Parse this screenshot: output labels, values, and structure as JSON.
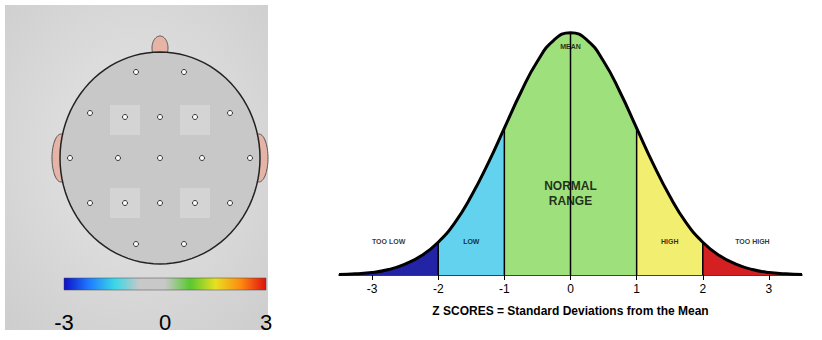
{
  "head_map": {
    "value": 0,
    "colorbar": {
      "range": [
        -3,
        3
      ],
      "ticks": [
        -3,
        0,
        3
      ],
      "colors": [
        "#1010c8",
        "#1e7cff",
        "#38d8e8",
        "#c8c8c8",
        "#c8c8c8",
        "#58c830",
        "#e8e020",
        "#ff8a10",
        "#e01010"
      ]
    }
  },
  "chart_data": {
    "type": "area",
    "x": [
      -3.5,
      -3.25,
      -3,
      -2.75,
      -2.5,
      -2.25,
      -2,
      -1.75,
      -1.5,
      -1.25,
      -1,
      -0.75,
      -0.5,
      -0.25,
      0,
      0.25,
      0.5,
      0.75,
      1,
      1.25,
      1.5,
      1.75,
      2,
      2.25,
      2.5,
      2.75,
      3,
      3.25,
      3.5
    ],
    "values": [
      0.001,
      0.002,
      0.004,
      0.009,
      0.018,
      0.032,
      0.054,
      0.086,
      0.13,
      0.183,
      0.242,
      0.301,
      0.352,
      0.387,
      0.399,
      0.387,
      0.352,
      0.301,
      0.242,
      0.183,
      0.13,
      0.086,
      0.054,
      0.032,
      0.018,
      0.009,
      0.004,
      0.002,
      0.001
    ],
    "color": "#000000",
    "xlim": [
      -3.5,
      3.5
    ],
    "xticks": [
      -3,
      -2,
      -1,
      0,
      1,
      2,
      3
    ],
    "ylim": [
      0,
      0.42
    ],
    "yticks": [],
    "tick_labels": "x",
    "grid": false,
    "x_label": "Z SCORES = Standard Deviations from the Mean",
    "regions": [
      {
        "label": "TOO LOW",
        "from": -3.5,
        "to": -2,
        "color": "#2323a6"
      },
      {
        "label": "LOW",
        "from": -2,
        "to": -1,
        "color": "#62d2ee"
      },
      {
        "label": "NORMAL\nRANGE",
        "from": -1,
        "to": 1,
        "color": "#9ee07c"
      },
      {
        "label": "HIGH",
        "from": 1,
        "to": 2,
        "color": "#f2ee70"
      },
      {
        "label": "TOO HIGH",
        "from": 2,
        "to": 3.5,
        "color": "#d42020"
      }
    ],
    "dividers": [
      -2,
      -1,
      0,
      1,
      2
    ],
    "mean": 0,
    "mean_label": "MEAN"
  }
}
